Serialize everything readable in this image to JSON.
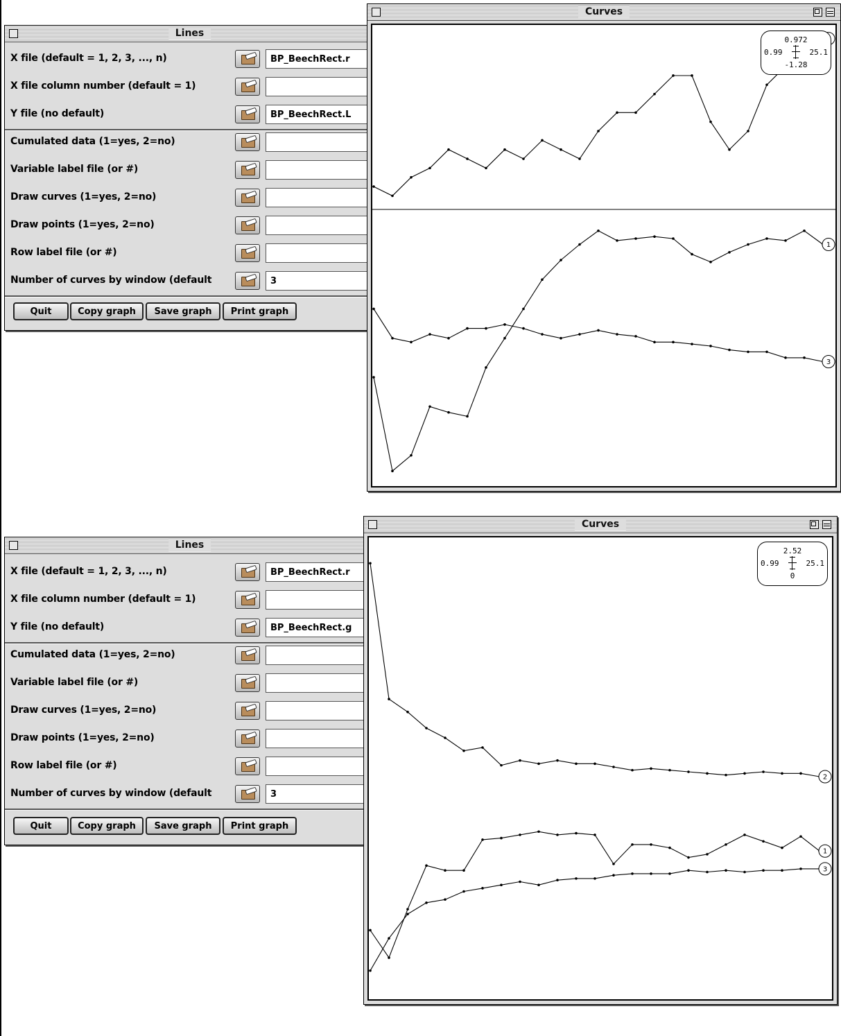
{
  "windows": [
    {
      "lines": {
        "title": "Lines",
        "rows": [
          {
            "label": "X file (default = 1, 2, 3, ..., n)",
            "value": "BP_BeechRect.r"
          },
          {
            "label": "X file column number (default = 1)",
            "value": ""
          },
          {
            "label": "Y file (no default)",
            "value": "BP_BeechRect.L"
          },
          {
            "label": "Cumulated data (1=yes, 2=no)",
            "value": ""
          },
          {
            "label": "Variable label file (or #)",
            "value": ""
          },
          {
            "label": "Draw curves (1=yes, 2=no)",
            "value": ""
          },
          {
            "label": "Draw points (1=yes, 2=no)",
            "value": ""
          },
          {
            "label": "Row label file (or #)",
            "value": ""
          },
          {
            "label": "Number of curves by window (default",
            "value": "3"
          }
        ],
        "buttons": {
          "quit": "Quit",
          "copy": "Copy graph",
          "save": "Save graph",
          "print": "Print graph"
        }
      },
      "curves": {
        "title": "Curves",
        "legend": {
          "top": "0.972",
          "left": "0.99",
          "right": "25.1",
          "bottom": "-1.28"
        },
        "chart_data": {
          "type": "line",
          "panels": [
            {
              "x": [
                1,
                2,
                3,
                4,
                5,
                6,
                7,
                8,
                9,
                10,
                11,
                12,
                13,
                14,
                15,
                16,
                17,
                18,
                19,
                20,
                21,
                22,
                23,
                24,
                25
              ],
              "series": [
                {
                  "name": "2",
                  "values": [
                    0.6,
                    0.58,
                    0.62,
                    0.64,
                    0.68,
                    0.66,
                    0.64,
                    0.68,
                    0.66,
                    0.7,
                    0.68,
                    0.66,
                    0.72,
                    0.76,
                    0.76,
                    0.8,
                    0.84,
                    0.84,
                    0.74,
                    0.68,
                    0.72,
                    0.82,
                    0.86,
                    0.88,
                    0.92
                  ]
                }
              ]
            },
            {
              "x": [
                1,
                2,
                3,
                4,
                5,
                6,
                7,
                8,
                9,
                10,
                11,
                12,
                13,
                14,
                15,
                16,
                17,
                18,
                19,
                20,
                21,
                22,
                23,
                24,
                25
              ],
              "series": [
                {
                  "name": "1",
                  "values": [
                    -0.8,
                    -1.28,
                    -1.2,
                    -0.95,
                    -0.98,
                    -1.0,
                    -0.75,
                    -0.6,
                    -0.45,
                    -0.3,
                    -0.2,
                    -0.12,
                    -0.05,
                    -0.1,
                    -0.09,
                    -0.08,
                    -0.09,
                    -0.17,
                    -0.21,
                    -0.16,
                    -0.12,
                    -0.09,
                    -0.1,
                    -0.05,
                    -0.12
                  ]
                },
                {
                  "name": "3",
                  "values": [
                    -0.45,
                    -0.6,
                    -0.62,
                    -0.58,
                    -0.6,
                    -0.55,
                    -0.55,
                    -0.53,
                    -0.55,
                    -0.58,
                    -0.6,
                    -0.58,
                    -0.56,
                    -0.58,
                    -0.59,
                    -0.62,
                    -0.62,
                    -0.63,
                    -0.64,
                    -0.66,
                    -0.67,
                    -0.67,
                    -0.7,
                    -0.7,
                    -0.72
                  ]
                }
              ]
            }
          ]
        }
      }
    },
    {
      "lines": {
        "title": "Lines",
        "rows": [
          {
            "label": "X file (default = 1, 2, 3, ..., n)",
            "value": "BP_BeechRect.r"
          },
          {
            "label": "X file column number (default = 1)",
            "value": ""
          },
          {
            "label": "Y file (no default)",
            "value": "BP_BeechRect.g"
          },
          {
            "label": "Cumulated data (1=yes, 2=no)",
            "value": ""
          },
          {
            "label": "Variable label file (or #)",
            "value": ""
          },
          {
            "label": "Draw curves (1=yes, 2=no)",
            "value": ""
          },
          {
            "label": "Draw points (1=yes, 2=no)",
            "value": ""
          },
          {
            "label": "Row label file (or #)",
            "value": ""
          },
          {
            "label": "Number of curves by window (default",
            "value": "3"
          }
        ],
        "buttons": {
          "quit": "Quit",
          "copy": "Copy graph",
          "save": "Save graph",
          "print": "Print graph"
        }
      },
      "curves": {
        "title": "Curves",
        "legend": {
          "top": "2.52",
          "left": "0.99",
          "right": "25.1",
          "bottom": "0"
        },
        "chart_data": {
          "type": "line",
          "panels": [
            {
              "x": [
                1,
                2,
                3,
                4,
                5,
                6,
                7,
                8,
                9,
                10,
                11,
                12,
                13,
                14,
                15,
                16,
                17,
                18,
                19,
                20,
                21,
                22,
                23,
                24,
                25
              ],
              "series": [
                {
                  "name": "2",
                  "values": [
                    2.52,
                    1.68,
                    1.6,
                    1.5,
                    1.44,
                    1.36,
                    1.38,
                    1.27,
                    1.3,
                    1.28,
                    1.3,
                    1.28,
                    1.28,
                    1.26,
                    1.24,
                    1.25,
                    1.24,
                    1.23,
                    1.22,
                    1.21,
                    1.22,
                    1.23,
                    1.22,
                    1.22,
                    1.2
                  ]
                },
                {
                  "name": "1",
                  "values": [
                    0.25,
                    0.08,
                    0.38,
                    0.65,
                    0.62,
                    0.62,
                    0.81,
                    0.82,
                    0.84,
                    0.86,
                    0.84,
                    0.85,
                    0.84,
                    0.66,
                    0.78,
                    0.78,
                    0.76,
                    0.7,
                    0.72,
                    0.78,
                    0.84,
                    0.8,
                    0.76,
                    0.83,
                    0.74
                  ]
                },
                {
                  "name": "3",
                  "values": [
                    0.0,
                    0.2,
                    0.35,
                    0.42,
                    0.44,
                    0.49,
                    0.51,
                    0.53,
                    0.55,
                    0.53,
                    0.56,
                    0.57,
                    0.57,
                    0.59,
                    0.6,
                    0.6,
                    0.6,
                    0.62,
                    0.61,
                    0.62,
                    0.61,
                    0.62,
                    0.62,
                    0.63,
                    0.63
                  ]
                }
              ]
            }
          ]
        }
      }
    }
  ]
}
